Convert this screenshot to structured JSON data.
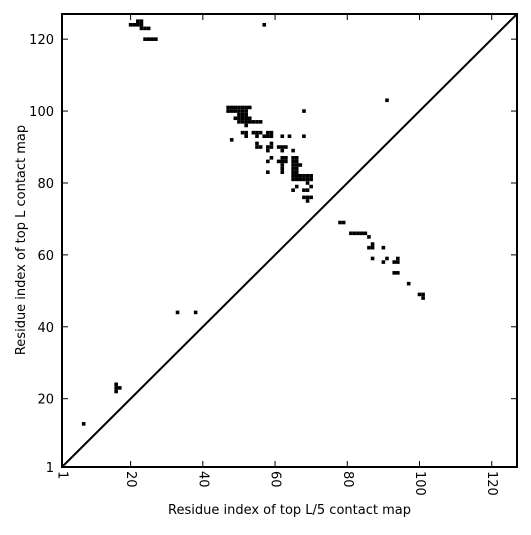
{
  "chart_data": {
    "type": "scatter",
    "xlabel": "Residue index of top L/5 contact map",
    "ylabel": "Residue index of top L contact map",
    "xlim": [
      1,
      127
    ],
    "ylim": [
      1,
      127
    ],
    "x_ticks": [
      1,
      20,
      40,
      60,
      80,
      100,
      120
    ],
    "y_ticks": [
      1,
      20,
      40,
      60,
      80,
      100,
      120
    ],
    "x_tick_labels": [
      "1",
      "20",
      "40",
      "60",
      "80",
      "100",
      "120"
    ],
    "y_tick_labels": [
      "1",
      "20",
      "40",
      "60",
      "80",
      "100",
      "120"
    ],
    "grid": false,
    "diagonal_line": true,
    "marker": "square",
    "colors": {
      "marker": "#000000",
      "axes": "#000000",
      "background": "#ffffff"
    },
    "series": [
      {
        "points": [
          [
            7,
            13
          ],
          [
            16,
            22
          ],
          [
            16,
            23
          ],
          [
            16,
            24
          ],
          [
            17,
            23
          ],
          [
            33,
            44
          ],
          [
            38,
            44
          ],
          [
            78,
            69
          ],
          [
            79,
            69
          ],
          [
            81,
            66
          ],
          [
            82,
            66
          ],
          [
            83,
            66
          ],
          [
            84,
            66
          ],
          [
            85,
            66
          ],
          [
            86,
            65
          ],
          [
            86,
            62
          ],
          [
            87,
            62
          ],
          [
            87,
            63
          ],
          [
            87,
            59
          ],
          [
            90,
            62
          ],
          [
            90,
            58
          ],
          [
            91,
            59
          ],
          [
            93,
            58
          ],
          [
            94,
            58
          ],
          [
            94,
            59
          ],
          [
            93,
            55
          ],
          [
            94,
            55
          ],
          [
            97,
            52
          ],
          [
            100,
            49
          ],
          [
            101,
            49
          ],
          [
            101,
            48
          ],
          [
            91,
            103
          ]
        ]
      },
      {
        "points": [
          [
            20,
            124
          ],
          [
            21,
            124
          ],
          [
            22,
            125
          ],
          [
            23,
            125
          ],
          [
            22,
            124
          ],
          [
            23,
            124
          ],
          [
            23,
            123
          ],
          [
            24,
            123
          ],
          [
            25,
            123
          ],
          [
            24,
            120
          ],
          [
            25,
            120
          ],
          [
            26,
            120
          ],
          [
            27,
            120
          ],
          [
            57,
            124
          ],
          [
            47,
            101
          ],
          [
            48,
            101
          ],
          [
            49,
            101
          ],
          [
            50,
            101
          ],
          [
            51,
            101
          ],
          [
            52,
            101
          ],
          [
            53,
            101
          ],
          [
            47,
            100
          ],
          [
            48,
            100
          ],
          [
            49,
            100
          ],
          [
            50,
            100
          ],
          [
            51,
            100
          ],
          [
            52,
            100
          ],
          [
            50,
            99
          ],
          [
            51,
            99
          ],
          [
            52,
            99
          ],
          [
            49,
            98
          ],
          [
            50,
            98
          ],
          [
            51,
            98
          ],
          [
            52,
            98
          ],
          [
            53,
            98
          ],
          [
            50,
            97
          ],
          [
            51,
            97
          ],
          [
            52,
            97
          ],
          [
            53,
            97
          ],
          [
            54,
            97
          ],
          [
            55,
            97
          ],
          [
            56,
            97
          ],
          [
            52,
            96
          ],
          [
            68,
            100
          ],
          [
            51,
            94
          ],
          [
            52,
            94
          ],
          [
            54,
            94
          ],
          [
            55,
            94
          ],
          [
            56,
            94
          ],
          [
            58,
            94
          ],
          [
            59,
            94
          ],
          [
            52,
            93
          ],
          [
            55,
            93
          ],
          [
            57,
            93
          ],
          [
            58,
            93
          ],
          [
            59,
            93
          ],
          [
            62,
            93
          ],
          [
            64,
            93
          ],
          [
            68,
            93
          ],
          [
            48,
            92
          ],
          [
            55,
            91
          ],
          [
            59,
            91
          ],
          [
            55,
            90
          ],
          [
            56,
            90
          ],
          [
            58,
            90
          ],
          [
            59,
            90
          ],
          [
            61,
            90
          ],
          [
            62,
            90
          ],
          [
            63,
            90
          ],
          [
            58,
            89
          ],
          [
            62,
            89
          ],
          [
            65,
            89
          ],
          [
            59,
            87
          ],
          [
            62,
            87
          ],
          [
            63,
            87
          ],
          [
            65,
            87
          ],
          [
            66,
            87
          ],
          [
            58,
            86
          ],
          [
            61,
            86
          ],
          [
            62,
            86
          ],
          [
            63,
            86
          ],
          [
            65,
            86
          ],
          [
            66,
            86
          ],
          [
            62,
            85
          ],
          [
            65,
            85
          ],
          [
            66,
            85
          ],
          [
            67,
            85
          ],
          [
            62,
            84
          ],
          [
            65,
            84
          ],
          [
            66,
            84
          ],
          [
            58,
            83
          ],
          [
            62,
            83
          ],
          [
            65,
            83
          ],
          [
            66,
            83
          ],
          [
            65,
            82
          ],
          [
            66,
            82
          ],
          [
            67,
            82
          ],
          [
            68,
            82
          ],
          [
            69,
            82
          ],
          [
            70,
            82
          ],
          [
            65,
            81
          ],
          [
            66,
            81
          ],
          [
            67,
            81
          ],
          [
            68,
            81
          ],
          [
            69,
            81
          ],
          [
            70,
            81
          ],
          [
            69,
            80
          ],
          [
            66,
            79
          ],
          [
            70,
            79
          ],
          [
            65,
            78
          ],
          [
            68,
            78
          ],
          [
            69,
            78
          ],
          [
            68,
            76
          ],
          [
            69,
            76
          ],
          [
            70,
            76
          ],
          [
            69,
            75
          ]
        ]
      }
    ]
  }
}
